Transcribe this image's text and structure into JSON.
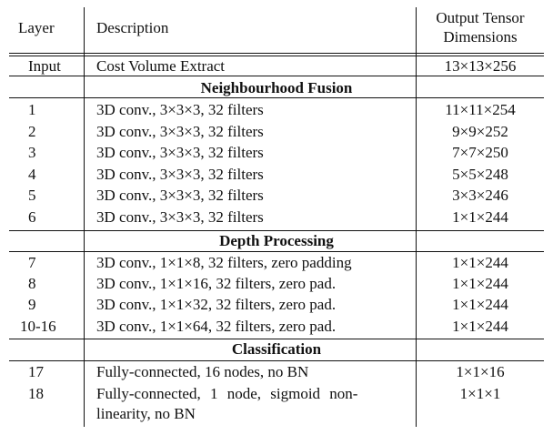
{
  "header": {
    "layer": "Layer",
    "description": "Description",
    "output_line1": "Output Tensor",
    "output_line2": "Dimensions"
  },
  "input_row": {
    "layer": "Input",
    "description": "Cost Volume Extract",
    "output": "13×13×256"
  },
  "sections": [
    {
      "title": "Neighbourhood Fusion",
      "rows": [
        {
          "layer": "1",
          "description": "3D conv., 3×3×3, 32 filters",
          "output": "11×11×254"
        },
        {
          "layer": "2",
          "description": "3D conv., 3×3×3, 32 filters",
          "output": "9×9×252"
        },
        {
          "layer": "3",
          "description": "3D conv., 3×3×3, 32 filters",
          "output": "7×7×250"
        },
        {
          "layer": "4",
          "description": "3D conv., 3×3×3, 32 filters",
          "output": "5×5×248"
        },
        {
          "layer": "5",
          "description": "3D conv., 3×3×3, 32 filters",
          "output": "3×3×246"
        },
        {
          "layer": "6",
          "description": "3D conv., 3×3×3, 32 filters",
          "output": "1×1×244"
        }
      ]
    },
    {
      "title": "Depth Processing",
      "rows": [
        {
          "layer": "7",
          "description": "3D conv., 1×1×8, 32 filters, zero padding",
          "output": "1×1×244"
        },
        {
          "layer": "8",
          "description": "3D conv., 1×1×16, 32 filters, zero pad.",
          "output": "1×1×244"
        },
        {
          "layer": "9",
          "description": "3D conv., 1×1×32, 32 filters, zero pad.",
          "output": "1×1×244"
        },
        {
          "layer": "10-16",
          "description": "3D conv., 1×1×64, 32 filters, zero pad.",
          "output": "1×1×244"
        }
      ]
    },
    {
      "title": "Classification",
      "rows": [
        {
          "layer": "17",
          "description": "Fully-connected, 16 nodes, no BN",
          "output": "1×1×16"
        },
        {
          "layer": "18",
          "description": "Fully-connected, 1 node, sigmoid non-",
          "description_cont": "linearity, no BN",
          "output": "1×1×1"
        }
      ]
    }
  ]
}
